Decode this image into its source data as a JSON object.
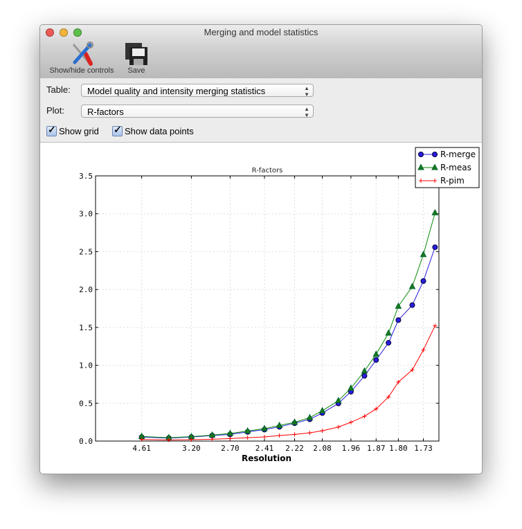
{
  "window": {
    "title": "Merging and model statistics"
  },
  "toolbar": {
    "show_hide_label": "Show/hide controls",
    "save_label": "Save"
  },
  "controls": {
    "table_label": "Table:",
    "table_value": "Model quality and intensity merging statistics",
    "plot_label": "Plot:",
    "plot_value": "R-factors",
    "show_grid_label": "Show grid",
    "show_grid_checked": true,
    "show_points_label": "Show data points",
    "show_points_checked": true
  },
  "chart_data": {
    "type": "line",
    "title": "R-factors",
    "xlabel": "Resolution",
    "ylabel": "",
    "x_scale": "inverse-square (1/d^2)",
    "x_resolution": [
      4.61,
      3.66,
      3.2,
      2.9,
      2.7,
      2.54,
      2.41,
      2.31,
      2.22,
      2.14,
      2.08,
      2.01,
      1.96,
      1.91,
      1.87,
      1.83,
      1.8,
      1.76,
      1.73,
      1.7
    ],
    "x_ticks": [
      "4.61",
      "3.20",
      "2.70",
      "2.41",
      "2.22",
      "2.08",
      "1.96",
      "1.87",
      "1.80",
      "1.73"
    ],
    "y_ticks": [
      "0.0",
      "0.5",
      "1.0",
      "1.5",
      "2.0",
      "2.5",
      "3.0",
      "3.5"
    ],
    "ylim": [
      0,
      3.5
    ],
    "grid": true,
    "legend_position": "top-right",
    "series": [
      {
        "name": "R-merge",
        "color": "#2a1ce0",
        "marker": "circle",
        "values": [
          0.052,
          0.039,
          0.052,
          0.073,
          0.088,
          0.121,
          0.152,
          0.188,
          0.236,
          0.288,
          0.37,
          0.497,
          0.652,
          0.861,
          1.07,
          1.297,
          1.597,
          1.794,
          2.112,
          2.558
        ]
      },
      {
        "name": "R-meas",
        "color": "#0a8a0a",
        "marker": "triangle",
        "values": [
          0.061,
          0.045,
          0.058,
          0.079,
          0.1,
          0.133,
          0.164,
          0.206,
          0.248,
          0.309,
          0.4,
          0.533,
          0.697,
          0.924,
          1.145,
          1.424,
          1.779,
          2.039,
          2.461,
          3.012
        ]
      },
      {
        "name": "R-pim",
        "color": "#ff0000",
        "marker": "plus",
        "values": [
          0.021,
          0.015,
          0.018,
          0.024,
          0.033,
          0.045,
          0.055,
          0.073,
          0.088,
          0.109,
          0.136,
          0.185,
          0.248,
          0.327,
          0.424,
          0.582,
          0.779,
          0.939,
          1.203,
          1.521
        ]
      }
    ]
  }
}
